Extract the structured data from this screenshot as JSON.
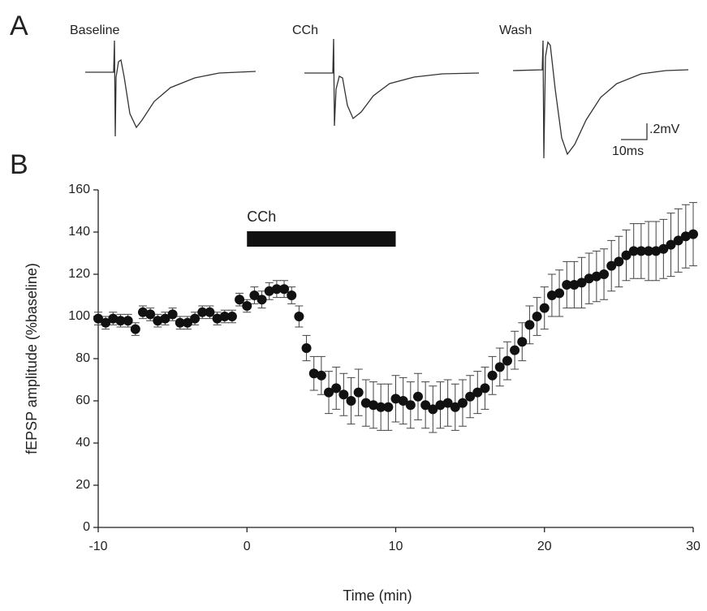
{
  "panel_a": {
    "label": "A",
    "traces": [
      "Baseline",
      "CCh",
      "Wash"
    ],
    "scale_bar": [
      ".2mV",
      "10ms"
    ]
  },
  "panel_b": {
    "label": "B"
  },
  "chart_data": {
    "type": "scatter",
    "xlabel": "Time (min)",
    "ylabel": "fEPSP amplitude (%baseline)",
    "xlim": [
      -10,
      30
    ],
    "xticks": [
      -10,
      0,
      10,
      20,
      30
    ],
    "ylim": [
      0,
      160
    ],
    "yticks": [
      0,
      20,
      40,
      60,
      80,
      100,
      120,
      140,
      160
    ],
    "annotations": [
      {
        "text": "CCh",
        "span": [
          0,
          10
        ]
      }
    ],
    "x": [
      -10,
      -9.5,
      -9,
      -8.5,
      -8,
      -7.5,
      -7,
      -6.5,
      -6,
      -5.5,
      -5,
      -4.5,
      -4,
      -3.5,
      -3,
      -2.5,
      -2,
      -1.5,
      -1,
      -0.5,
      0,
      0.5,
      1,
      1.5,
      2,
      2.5,
      3,
      3.5,
      4,
      4.5,
      5,
      5.5,
      6,
      6.5,
      7,
      7.5,
      8,
      8.5,
      9,
      9.5,
      10,
      10.5,
      11,
      11.5,
      12,
      12.5,
      13,
      13.5,
      14,
      14.5,
      15,
      15.5,
      16,
      16.5,
      17,
      17.5,
      18,
      18.5,
      19,
      19.5,
      20,
      20.5,
      21,
      21.5,
      22,
      22.5,
      23,
      23.5,
      24,
      24.5,
      25,
      25.5,
      26,
      26.5,
      27,
      27.5,
      28,
      28.5,
      29,
      29.5,
      30
    ],
    "series": [
      {
        "color": "#111111",
        "values": [
          99,
          97,
          99,
          98,
          98,
          94,
          102,
          101,
          98,
          99,
          101,
          97,
          97,
          99,
          102,
          102,
          99,
          100,
          100,
          108,
          105,
          110,
          108,
          112,
          113,
          113,
          110,
          100,
          85,
          73,
          72,
          64,
          66,
          63,
          60,
          64,
          59,
          58,
          57,
          57,
          61,
          60,
          58,
          62,
          58,
          56,
          58,
          59,
          57,
          59,
          62,
          64,
          66,
          72,
          76,
          79,
          84,
          88,
          96,
          100,
          104,
          110,
          111,
          115,
          115,
          116,
          118,
          119,
          120,
          124,
          126,
          129,
          131,
          131,
          131,
          131,
          132,
          134,
          136,
          138,
          139
        ],
        "errors": [
          3,
          3,
          3,
          3,
          3,
          3,
          3,
          3,
          3,
          3,
          3,
          3,
          3,
          3,
          3,
          3,
          3,
          3,
          3,
          3,
          3,
          4,
          4,
          4,
          4,
          4,
          4,
          5,
          6,
          8,
          9,
          10,
          10,
          10,
          11,
          11,
          11,
          11,
          11,
          11,
          11,
          11,
          11,
          11,
          11,
          11,
          11,
          11,
          11,
          11,
          10,
          10,
          10,
          9,
          9,
          9,
          9,
          9,
          9,
          9,
          10,
          10,
          11,
          11,
          11,
          12,
          12,
          12,
          12,
          12,
          12,
          12,
          13,
          13,
          14,
          14,
          14,
          15,
          15,
          15,
          15
        ]
      }
    ]
  }
}
